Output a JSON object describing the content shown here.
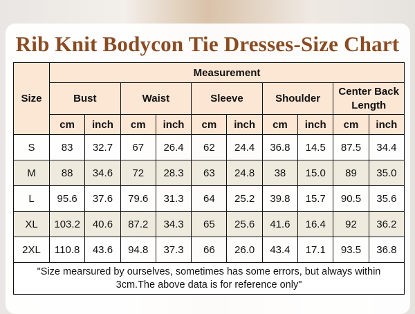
{
  "title": "Rib Knit Bodycon Tie Dresses-Size Chart",
  "headers": {
    "size": "Size",
    "measurement": "Measurement",
    "groups": [
      "Bust",
      "Waist",
      "Sleeve",
      "Shoulder",
      "Center Back Length"
    ],
    "units": [
      "cm",
      "inch",
      "cm",
      "inch",
      "cm",
      "inch",
      "cm",
      "inch",
      "cm",
      "inch"
    ]
  },
  "rows": [
    {
      "size": "S",
      "values": [
        "83",
        "32.7",
        "67",
        "26.4",
        "62",
        "24.4",
        "36.8",
        "14.5",
        "87.5",
        "34.4"
      ]
    },
    {
      "size": "M",
      "values": [
        "88",
        "34.6",
        "72",
        "28.3",
        "63",
        "24.8",
        "38",
        "15.0",
        "89",
        "35.0"
      ]
    },
    {
      "size": "L",
      "values": [
        "95.6",
        "37.6",
        "79.6",
        "31.3",
        "64",
        "25.2",
        "39.8",
        "15.7",
        "90.5",
        "35.6"
      ]
    },
    {
      "size": "XL",
      "values": [
        "103.2",
        "40.6",
        "87.2",
        "34.3",
        "65",
        "25.6",
        "41.6",
        "16.4",
        "92",
        "36.2"
      ]
    },
    {
      "size": "2XL",
      "values": [
        "110.8",
        "43.6",
        "94.8",
        "37.3",
        "66",
        "26.0",
        "43.4",
        "17.1",
        "93.5",
        "36.8"
      ]
    }
  ],
  "note": "\"Size mearsured by ourselves, sometimes has some errors, but always within 3cm.The above data is for reference only\"",
  "colors": {
    "title": "#8a4b22",
    "header_bg": "#fbe2cd",
    "alt_row_bg": "#ece8da"
  }
}
